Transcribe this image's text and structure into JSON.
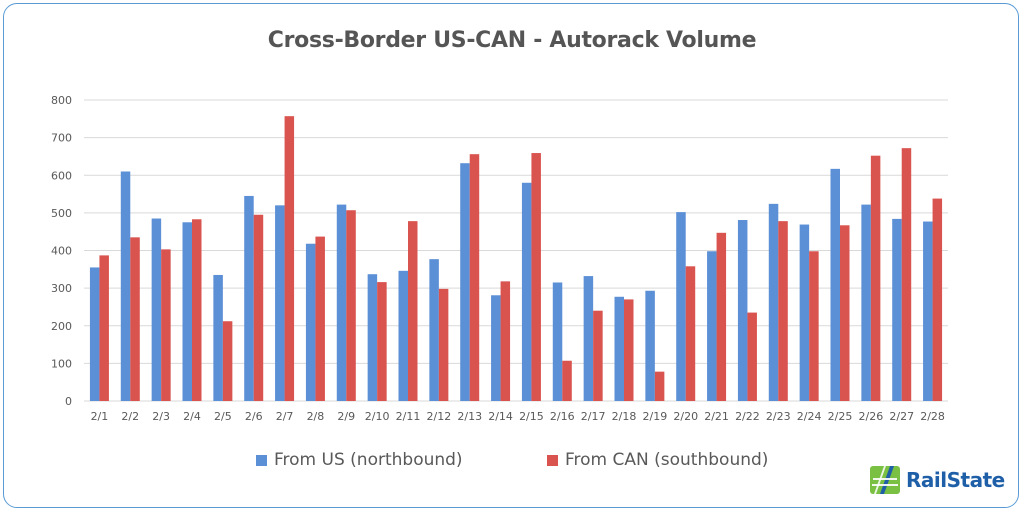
{
  "colors": {
    "northbound": "#5b8fd6",
    "southbound": "#d9534f",
    "gridline": "#d9d9d9",
    "axis_text": "#595959",
    "frame_border": "#5b9bd5",
    "logo_green": "#7ac143",
    "logo_blue": "#1f5fa8"
  },
  "logo": {
    "text": "RailState"
  },
  "chart_data": {
    "type": "bar",
    "title": "Cross-Border US-CAN - Autorack Volume",
    "xlabel": "",
    "ylabel": "",
    "ylim": [
      0,
      800
    ],
    "yticks": [
      0,
      100,
      200,
      300,
      400,
      500,
      600,
      700,
      800
    ],
    "grid": true,
    "legend_position": "bottom",
    "categories": [
      "2/1",
      "2/2",
      "2/3",
      "2/4",
      "2/5",
      "2/6",
      "2/7",
      "2/8",
      "2/9",
      "2/10",
      "2/11",
      "2/12",
      "2/13",
      "2/14",
      "2/15",
      "2/16",
      "2/17",
      "2/18",
      "2/19",
      "2/20",
      "2/21",
      "2/22",
      "2/23",
      "2/24",
      "2/25",
      "2/26",
      "2/27",
      "2/28"
    ],
    "series": [
      {
        "name": "From US (northbound)",
        "color_key": "northbound",
        "values": [
          355,
          610,
          485,
          475,
          335,
          545,
          520,
          418,
          522,
          337,
          346,
          377,
          632,
          281,
          580,
          315,
          332,
          277,
          293,
          502,
          398,
          481,
          524,
          469,
          617,
          522,
          484,
          477
        ]
      },
      {
        "name": "From CAN (southbound)",
        "color_key": "southbound",
        "values": [
          387,
          435,
          403,
          483,
          212,
          495,
          757,
          437,
          507,
          316,
          478,
          298,
          656,
          318,
          659,
          107,
          240,
          270,
          78,
          358,
          447,
          235,
          478,
          398,
          467,
          652,
          672,
          538
        ]
      }
    ]
  }
}
